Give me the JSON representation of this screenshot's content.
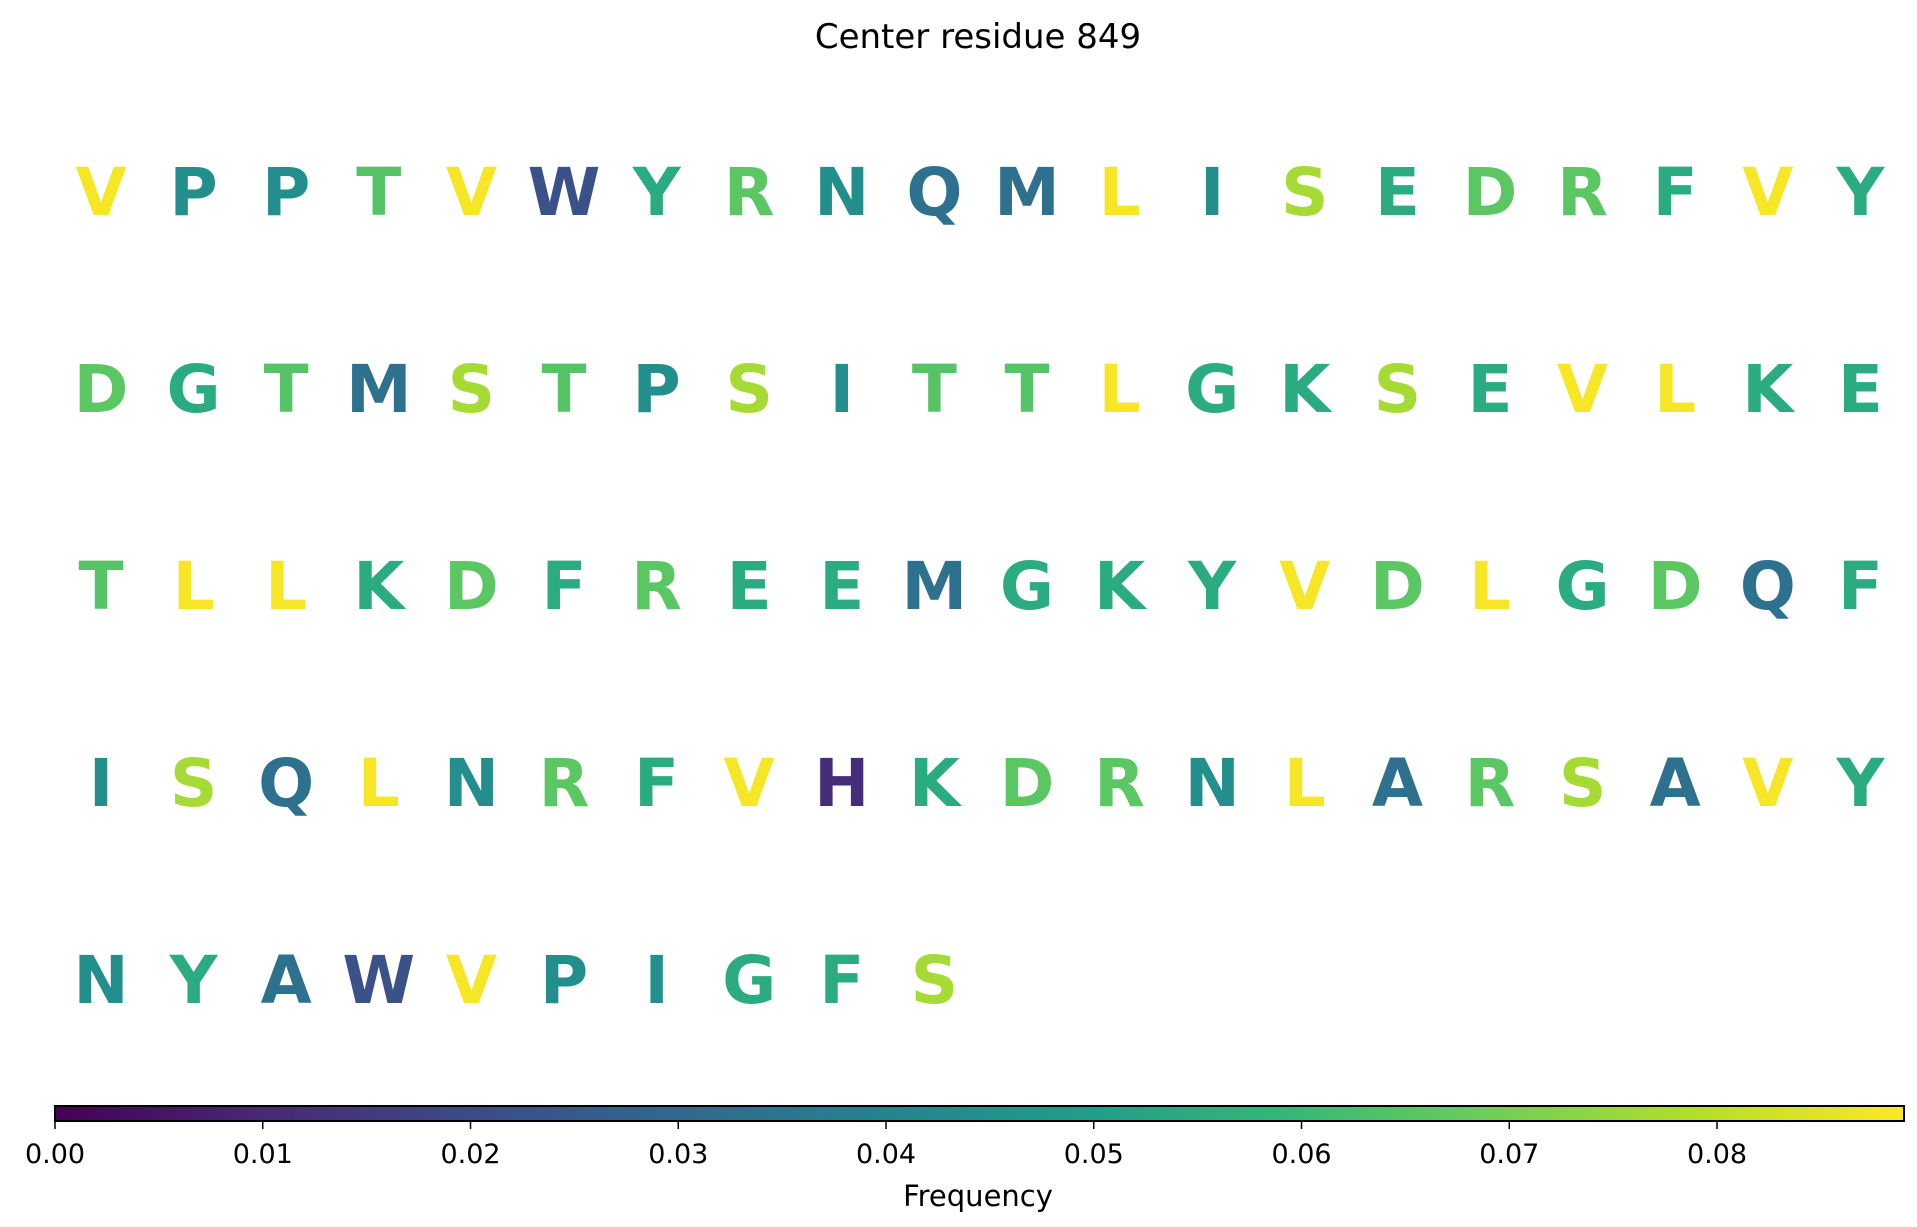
{
  "chart_data": {
    "type": "heatmap",
    "title": "Center residue 849",
    "grid": false,
    "columns_per_row": 20,
    "residues": [
      {
        "letter": "V",
        "frequency": 0.088
      },
      {
        "letter": "P",
        "frequency": 0.044
      },
      {
        "letter": "P",
        "frequency": 0.044
      },
      {
        "letter": "T",
        "frequency": 0.065
      },
      {
        "letter": "V",
        "frequency": 0.088
      },
      {
        "letter": "W",
        "frequency": 0.022
      },
      {
        "letter": "Y",
        "frequency": 0.055
      },
      {
        "letter": "R",
        "frequency": 0.066
      },
      {
        "letter": "N",
        "frequency": 0.044
      },
      {
        "letter": "Q",
        "frequency": 0.033
      },
      {
        "letter": "M",
        "frequency": 0.033
      },
      {
        "letter": "L",
        "frequency": 0.088
      },
      {
        "letter": "I",
        "frequency": 0.044
      },
      {
        "letter": "S",
        "frequency": 0.077
      },
      {
        "letter": "E",
        "frequency": 0.055
      },
      {
        "letter": "D",
        "frequency": 0.066
      },
      {
        "letter": "R",
        "frequency": 0.066
      },
      {
        "letter": "F",
        "frequency": 0.055
      },
      {
        "letter": "V",
        "frequency": 0.088
      },
      {
        "letter": "Y",
        "frequency": 0.055
      },
      {
        "letter": "D",
        "frequency": 0.066
      },
      {
        "letter": "G",
        "frequency": 0.055
      },
      {
        "letter": "T",
        "frequency": 0.065
      },
      {
        "letter": "M",
        "frequency": 0.033
      },
      {
        "letter": "S",
        "frequency": 0.077
      },
      {
        "letter": "T",
        "frequency": 0.065
      },
      {
        "letter": "P",
        "frequency": 0.044
      },
      {
        "letter": "S",
        "frequency": 0.077
      },
      {
        "letter": "I",
        "frequency": 0.044
      },
      {
        "letter": "T",
        "frequency": 0.065
      },
      {
        "letter": "T",
        "frequency": 0.065
      },
      {
        "letter": "L",
        "frequency": 0.088
      },
      {
        "letter": "G",
        "frequency": 0.055
      },
      {
        "letter": "K",
        "frequency": 0.055
      },
      {
        "letter": "S",
        "frequency": 0.077
      },
      {
        "letter": "E",
        "frequency": 0.055
      },
      {
        "letter": "V",
        "frequency": 0.088
      },
      {
        "letter": "L",
        "frequency": 0.088
      },
      {
        "letter": "K",
        "frequency": 0.055
      },
      {
        "letter": "E",
        "frequency": 0.055
      },
      {
        "letter": "T",
        "frequency": 0.065
      },
      {
        "letter": "L",
        "frequency": 0.088
      },
      {
        "letter": "L",
        "frequency": 0.088
      },
      {
        "letter": "K",
        "frequency": 0.055
      },
      {
        "letter": "D",
        "frequency": 0.066
      },
      {
        "letter": "F",
        "frequency": 0.055
      },
      {
        "letter": "R",
        "frequency": 0.066
      },
      {
        "letter": "E",
        "frequency": 0.055
      },
      {
        "letter": "E",
        "frequency": 0.055
      },
      {
        "letter": "M",
        "frequency": 0.033
      },
      {
        "letter": "G",
        "frequency": 0.055
      },
      {
        "letter": "K",
        "frequency": 0.055
      },
      {
        "letter": "Y",
        "frequency": 0.055
      },
      {
        "letter": "V",
        "frequency": 0.088
      },
      {
        "letter": "D",
        "frequency": 0.066
      },
      {
        "letter": "L",
        "frequency": 0.088
      },
      {
        "letter": "G",
        "frequency": 0.055
      },
      {
        "letter": "D",
        "frequency": 0.066
      },
      {
        "letter": "Q",
        "frequency": 0.033
      },
      {
        "letter": "F",
        "frequency": 0.055
      },
      {
        "letter": "I",
        "frequency": 0.044
      },
      {
        "letter": "S",
        "frequency": 0.077
      },
      {
        "letter": "Q",
        "frequency": 0.033
      },
      {
        "letter": "L",
        "frequency": 0.088
      },
      {
        "letter": "N",
        "frequency": 0.044
      },
      {
        "letter": "R",
        "frequency": 0.066
      },
      {
        "letter": "F",
        "frequency": 0.055
      },
      {
        "letter": "V",
        "frequency": 0.088
      },
      {
        "letter": "H",
        "frequency": 0.011
      },
      {
        "letter": "K",
        "frequency": 0.055
      },
      {
        "letter": "D",
        "frequency": 0.066
      },
      {
        "letter": "R",
        "frequency": 0.066
      },
      {
        "letter": "N",
        "frequency": 0.044
      },
      {
        "letter": "L",
        "frequency": 0.088
      },
      {
        "letter": "A",
        "frequency": 0.033
      },
      {
        "letter": "R",
        "frequency": 0.066
      },
      {
        "letter": "S",
        "frequency": 0.077
      },
      {
        "letter": "A",
        "frequency": 0.033
      },
      {
        "letter": "V",
        "frequency": 0.088
      },
      {
        "letter": "Y",
        "frequency": 0.055
      },
      {
        "letter": "N",
        "frequency": 0.044
      },
      {
        "letter": "Y",
        "frequency": 0.055
      },
      {
        "letter": "A",
        "frequency": 0.033
      },
      {
        "letter": "W",
        "frequency": 0.022
      },
      {
        "letter": "V",
        "frequency": 0.088
      },
      {
        "letter": "P",
        "frequency": 0.044
      },
      {
        "letter": "I",
        "frequency": 0.044
      },
      {
        "letter": "G",
        "frequency": 0.055
      },
      {
        "letter": "F",
        "frequency": 0.055
      },
      {
        "letter": "S",
        "frequency": 0.077
      }
    ],
    "colorbar": {
      "label": "Frequency",
      "colormap": "viridis",
      "orientation": "horizontal",
      "placement": "bottom",
      "range": [
        0.0,
        0.089
      ],
      "ticks": [
        0.0,
        0.01,
        0.02,
        0.03,
        0.04,
        0.05,
        0.06,
        0.07,
        0.08
      ],
      "tick_labels": [
        "0.00",
        "0.01",
        "0.02",
        "0.03",
        "0.04",
        "0.05",
        "0.06",
        "0.07",
        "0.08"
      ]
    }
  }
}
